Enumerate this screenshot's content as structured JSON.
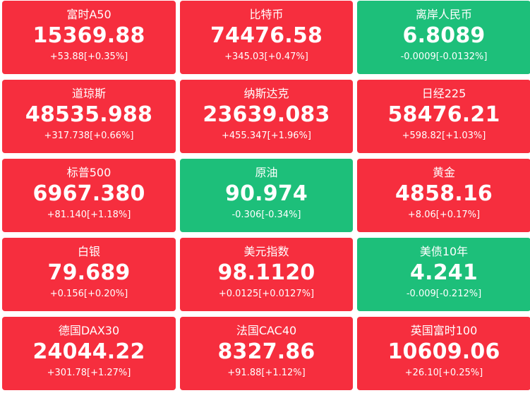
{
  "colors": {
    "up": "#f62e3e",
    "down": "#1dbf7a",
    "text": "#ffffff"
  },
  "tiles": [
    {
      "name": "富时A50",
      "price": "15369.88",
      "change": "+53.88[+0.35%]",
      "direction": "up"
    },
    {
      "name": "比特币",
      "price": "74476.58",
      "change": "+345.03[+0.47%]",
      "direction": "up"
    },
    {
      "name": "离岸人民币",
      "price": "6.8089",
      "change": "-0.0009[-0.0132%]",
      "direction": "down"
    },
    {
      "name": "道琼斯",
      "price": "48535.988",
      "change": "+317.738[+0.66%]",
      "direction": "up"
    },
    {
      "name": "纳斯达克",
      "price": "23639.083",
      "change": "+455.347[+1.96%]",
      "direction": "up"
    },
    {
      "name": "日经225",
      "price": "58476.21",
      "change": "+598.82[+1.03%]",
      "direction": "up"
    },
    {
      "name": "标普500",
      "price": "6967.380",
      "change": "+81.140[+1.18%]",
      "direction": "up"
    },
    {
      "name": "原油",
      "price": "90.974",
      "change": "-0.306[-0.34%]",
      "direction": "down"
    },
    {
      "name": "黄金",
      "price": "4858.16",
      "change": "+8.06[+0.17%]",
      "direction": "up"
    },
    {
      "name": "白银",
      "price": "79.689",
      "change": "+0.156[+0.20%]",
      "direction": "up"
    },
    {
      "name": "美元指数",
      "price": "98.1120",
      "change": "+0.0125[+0.0127%]",
      "direction": "up"
    },
    {
      "name": "美债10年",
      "price": "4.241",
      "change": "-0.009[-0.212%]",
      "direction": "down"
    },
    {
      "name": "德国DAX30",
      "price": "24044.22",
      "change": "+301.78[+1.27%]",
      "direction": "up"
    },
    {
      "name": "法国CAC40",
      "price": "8327.86",
      "change": "+91.88[+1.12%]",
      "direction": "up"
    },
    {
      "name": "英国富时100",
      "price": "10609.06",
      "change": "+26.10[+0.25%]",
      "direction": "up"
    }
  ]
}
